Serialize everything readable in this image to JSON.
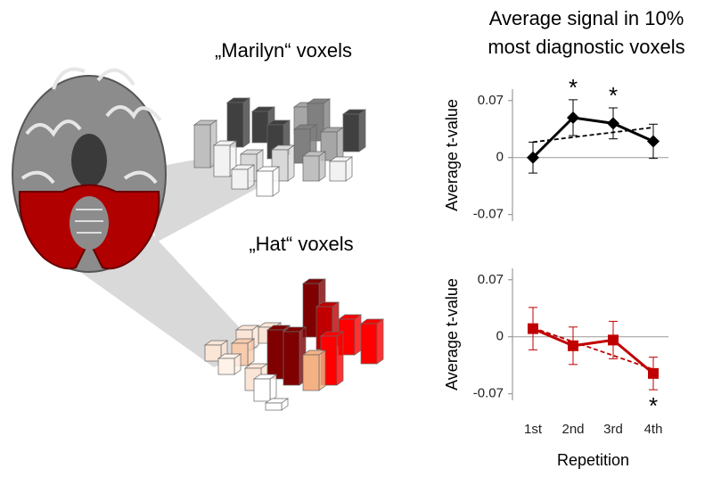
{
  "title": [
    "Average signal in 10%",
    "most diagnostic voxels"
  ],
  "illustration": {
    "labels": [
      "„Marilyn“ voxels",
      "„Hat“ voxels"
    ]
  },
  "chart_data": [
    {
      "type": "line",
      "y_label": "Average t-value",
      "categories": [
        null,
        null,
        null,
        null
      ],
      "series": [
        {
          "color": "#000000",
          "marker": "diamond",
          "values": [
            0,
            0.049,
            0.042,
            0.02
          ],
          "errors": [
            0.019,
            0.022,
            0.019,
            0.021
          ],
          "trend": [
            0.019,
            0.037
          ],
          "significance": [
            null,
            "*",
            "*",
            null
          ]
        }
      ],
      "ylim": [
        -0.078,
        0.084
      ],
      "yticks": [
        -0.07,
        0,
        0.07
      ],
      "zero_line": true
    },
    {
      "type": "line",
      "y_label": "Average t-value",
      "x_label": "Repetition",
      "categories": [
        "1st",
        "2nd",
        "3rd",
        "4th"
      ],
      "series": [
        {
          "color": "#c00000",
          "marker": "square",
          "values": [
            0.01,
            -0.011,
            -0.004,
            -0.045
          ],
          "errors": [
            0.026,
            0.023,
            0.023,
            0.02
          ],
          "trend": [
            0.011,
            -0.04
          ],
          "significance": [
            null,
            null,
            null,
            "*"
          ]
        }
      ],
      "ylim": [
        -0.078,
        0.084
      ],
      "yticks": [
        -0.07,
        0,
        0.07
      ],
      "zero_line": true
    }
  ]
}
